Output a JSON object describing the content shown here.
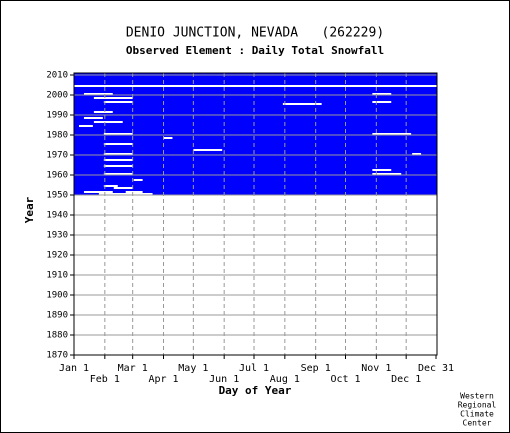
{
  "chart_data": {
    "type": "heatmap-rows",
    "title": "DENIO JUNCTION, NEVADA   (262229)",
    "subtitle": "Observed Element : Daily Total Snowfall",
    "xlabel": "Day of Year",
    "ylabel": "Year",
    "credit": [
      "Western",
      "Regional",
      "Climate",
      "Center"
    ],
    "color": "#0000ff",
    "xlim": [
      1,
      366
    ],
    "ylim": [
      1870,
      2011
    ],
    "xticks": [
      {
        "value": 1,
        "label": "Jan 1"
      },
      {
        "value": 32,
        "label": "Feb 1"
      },
      {
        "value": 60,
        "label": "Mar 1"
      },
      {
        "value": 91,
        "label": "Apr 1"
      },
      {
        "value": 121,
        "label": "May 1"
      },
      {
        "value": 152,
        "label": "Jun 1"
      },
      {
        "value": 182,
        "label": "Jul 1"
      },
      {
        "value": 213,
        "label": "Aug 1"
      },
      {
        "value": 244,
        "label": "Sep 1"
      },
      {
        "value": 274,
        "label": "Oct 1"
      },
      {
        "value": 305,
        "label": "Nov 1"
      },
      {
        "value": 335,
        "label": "Dec 1"
      },
      {
        "value": 365,
        "label": "Dec 31"
      }
    ],
    "yticks": [
      1870,
      1880,
      1890,
      1900,
      1910,
      1920,
      1930,
      1940,
      1950,
      1960,
      1970,
      1980,
      1990,
      2000,
      2010
    ],
    "grid": true,
    "rows": [
      [
        1950,
        1,
        25
      ],
      [
        1950,
        80,
        365
      ],
      [
        1951,
        1,
        10
      ],
      [
        1951,
        40,
        52
      ],
      [
        1951,
        70,
        365
      ],
      [
        1952,
        1,
        365
      ],
      [
        1953,
        1,
        40
      ],
      [
        1953,
        60,
        365
      ],
      [
        1954,
        1,
        30
      ],
      [
        1954,
        45,
        365
      ],
      [
        1955,
        1,
        365
      ],
      [
        1956,
        1,
        365
      ],
      [
        1957,
        1,
        60
      ],
      [
        1957,
        70,
        365
      ],
      [
        1958,
        1,
        365
      ],
      [
        1959,
        1,
        365
      ],
      [
        1960,
        1,
        30
      ],
      [
        1960,
        60,
        300
      ],
      [
        1960,
        330,
        365
      ],
      [
        1961,
        1,
        365
      ],
      [
        1962,
        1,
        300
      ],
      [
        1962,
        320,
        365
      ],
      [
        1963,
        1,
        365
      ],
      [
        1964,
        1,
        30
      ],
      [
        1964,
        60,
        365
      ],
      [
        1965,
        1,
        365
      ],
      [
        1966,
        1,
        365
      ],
      [
        1967,
        1,
        30
      ],
      [
        1967,
        60,
        365
      ],
      [
        1968,
        1,
        365
      ],
      [
        1969,
        1,
        365
      ],
      [
        1970,
        1,
        30
      ],
      [
        1970,
        60,
        340
      ],
      [
        1970,
        350,
        365
      ],
      [
        1971,
        1,
        365
      ],
      [
        1972,
        1,
        120
      ],
      [
        1972,
        150,
        365
      ],
      [
        1973,
        1,
        365
      ],
      [
        1974,
        1,
        365
      ],
      [
        1975,
        1,
        30
      ],
      [
        1975,
        60,
        365
      ],
      [
        1976,
        1,
        365
      ],
      [
        1977,
        1,
        365
      ],
      [
        1978,
        1,
        90
      ],
      [
        1978,
        100,
        365
      ],
      [
        1979,
        1,
        365
      ],
      [
        1980,
        1,
        30
      ],
      [
        1980,
        60,
        300
      ],
      [
        1980,
        340,
        365
      ],
      [
        1981,
        1,
        365
      ],
      [
        1982,
        1,
        365
      ],
      [
        1983,
        1,
        365
      ],
      [
        1984,
        1,
        5
      ],
      [
        1984,
        20,
        365
      ],
      [
        1985,
        1,
        365
      ],
      [
        1986,
        1,
        20
      ],
      [
        1986,
        50,
        365
      ],
      [
        1987,
        1,
        365
      ],
      [
        1988,
        1,
        10
      ],
      [
        1988,
        30,
        365
      ],
      [
        1989,
        1,
        365
      ],
      [
        1990,
        1,
        365
      ],
      [
        1991,
        1,
        20
      ],
      [
        1991,
        40,
        365
      ],
      [
        1992,
        1,
        365
      ],
      [
        1993,
        1,
        365
      ],
      [
        1994,
        1,
        365
      ],
      [
        1995,
        1,
        210
      ],
      [
        1995,
        250,
        365
      ],
      [
        1996,
        1,
        30
      ],
      [
        1996,
        60,
        300
      ],
      [
        1996,
        320,
        365
      ],
      [
        1997,
        1,
        365
      ],
      [
        1998,
        1,
        20
      ],
      [
        1998,
        60,
        365
      ],
      [
        1999,
        1,
        365
      ],
      [
        2000,
        1,
        10
      ],
      [
        2000,
        40,
        300
      ],
      [
        2000,
        320,
        365
      ],
      [
        2001,
        1,
        365
      ],
      [
        2002,
        1,
        365
      ],
      [
        2003,
        1,
        365
      ],
      [
        2005,
        1,
        365
      ],
      [
        2006,
        1,
        365
      ],
      [
        2007,
        1,
        365
      ],
      [
        2008,
        1,
        365
      ],
      [
        2009,
        1,
        365
      ],
      [
        2010,
        1,
        365
      ]
    ]
  }
}
